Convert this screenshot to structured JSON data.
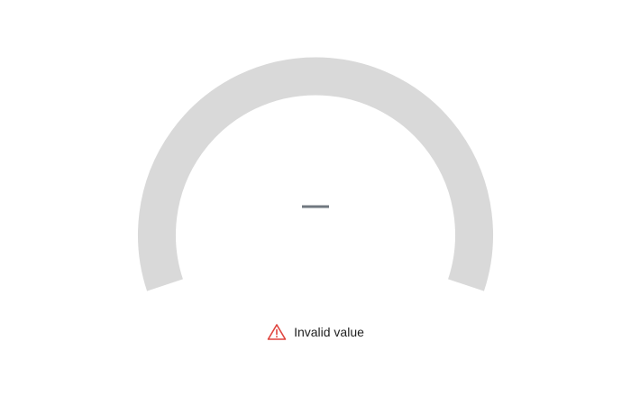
{
  "gauge": {
    "value_text": "—",
    "track_color": "#d9d9d9",
    "value_color": "#707880"
  },
  "status": {
    "icon": "warning-triangle-icon",
    "icon_color": "#e0443e",
    "text": "Invalid value"
  }
}
